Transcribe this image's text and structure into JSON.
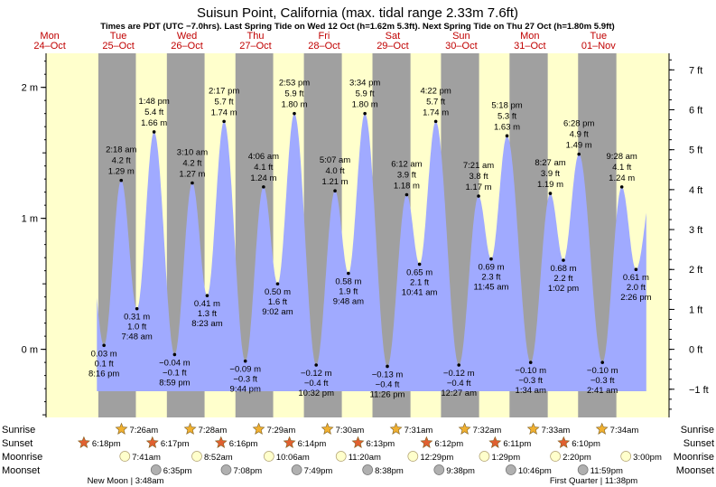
{
  "chart_data": {
    "type": "area",
    "title": "Suisun Point, California (max. tidal range 2.33m 7.6ft)",
    "subtitle": "Times are PDT (UTC −7.0hrs). Last Spring Tide on Wed 12 Oct (h=1.62m 5.3ft). Next Spring Tide on Thu 27 Oct (h=1.80m 5.9ft)",
    "units_left": "m",
    "units_right": "ft",
    "y_range_m": [
      -0.52,
      2.26
    ],
    "m_ticks": [
      {
        "v": 0,
        "label": "0 m"
      },
      {
        "v": 1,
        "label": "1 m"
      },
      {
        "v": 2,
        "label": "2 m"
      }
    ],
    "ft_ticks": [
      {
        "v": -1,
        "label": "−1 ft"
      },
      {
        "v": 0,
        "label": "0 ft"
      },
      {
        "v": 1,
        "label": "1 ft"
      },
      {
        "v": 2,
        "label": "2 ft"
      },
      {
        "v": 3,
        "label": "3 ft"
      },
      {
        "v": 4,
        "label": "4 ft"
      },
      {
        "v": 5,
        "label": "5 ft"
      },
      {
        "v": 6,
        "label": "6 ft"
      },
      {
        "v": 7,
        "label": "7 ft"
      }
    ],
    "x_range_hours": [
      0,
      218
    ],
    "days": [
      {
        "weekday": "Mon",
        "date": "24–Oct"
      },
      {
        "weekday": "Tue",
        "date": "25–Oct"
      },
      {
        "weekday": "Wed",
        "date": "26–Oct"
      },
      {
        "weekday": "Thu",
        "date": "27–Oct"
      },
      {
        "weekday": "Fri",
        "date": "28–Oct"
      },
      {
        "weekday": "Sat",
        "date": "29–Oct"
      },
      {
        "weekday": "Sun",
        "date": "30–Oct"
      },
      {
        "weekday": "Mon",
        "date": "31–Oct"
      },
      {
        "weekday": "Tue",
        "date": "01–Nov"
      }
    ],
    "tides": [
      {
        "type": "low",
        "time": "8:16 pm",
        "m": "0.03 m",
        "ft": "0.1 ft",
        "t": 20.27,
        "v": 0.03
      },
      {
        "type": "high",
        "time": "2:18 am",
        "m": "1.29 m",
        "ft": "4.2 ft",
        "t": 26.3,
        "v": 1.29
      },
      {
        "type": "low",
        "time": "7:48 am",
        "m": "0.31 m",
        "ft": "1.0 ft",
        "t": 31.8,
        "v": 0.31
      },
      {
        "type": "high",
        "time": "1:48 pm",
        "m": "1.66 m",
        "ft": "5.4 ft",
        "t": 37.8,
        "v": 1.66
      },
      {
        "type": "low",
        "time": "8:59 pm",
        "m": "−0.04 m",
        "ft": "−0.1 ft",
        "t": 44.98,
        "v": -0.04
      },
      {
        "type": "high",
        "time": "3:10 am",
        "m": "1.27 m",
        "ft": "4.2 ft",
        "t": 51.17,
        "v": 1.27
      },
      {
        "type": "low",
        "time": "8:23 am",
        "m": "0.41 m",
        "ft": "1.3 ft",
        "t": 56.38,
        "v": 0.41
      },
      {
        "type": "high",
        "time": "2:17 pm",
        "m": "1.74 m",
        "ft": "5.7 ft",
        "t": 62.28,
        "v": 1.74
      },
      {
        "type": "low",
        "time": "9:44 pm",
        "m": "−0.09 m",
        "ft": "−0.3 ft",
        "t": 69.73,
        "v": -0.09
      },
      {
        "type": "high",
        "time": "4:06 am",
        "m": "1.24 m",
        "ft": "4.1 ft",
        "t": 76.1,
        "v": 1.24
      },
      {
        "type": "low",
        "time": "9:02 am",
        "m": "0.50 m",
        "ft": "1.6 ft",
        "t": 81.03,
        "v": 0.5
      },
      {
        "type": "high",
        "time": "2:53 pm",
        "m": "1.80 m",
        "ft": "5.9 ft",
        "t": 86.88,
        "v": 1.8
      },
      {
        "type": "low",
        "time": "10:32 pm",
        "m": "−0.12 m",
        "ft": "−0.4 ft",
        "t": 94.53,
        "v": -0.12
      },
      {
        "type": "high",
        "time": "5:07 am",
        "m": "1.21 m",
        "ft": "4.0 ft",
        "t": 101.12,
        "v": 1.21
      },
      {
        "type": "low",
        "time": "9:48 am",
        "m": "0.58 m",
        "ft": "1.9 ft",
        "t": 105.8,
        "v": 0.58
      },
      {
        "type": "high",
        "time": "3:34 pm",
        "m": "1.80 m",
        "ft": "5.9 ft",
        "t": 111.57,
        "v": 1.8
      },
      {
        "type": "low",
        "time": "11:26 pm",
        "m": "−0.13 m",
        "ft": "−0.4 ft",
        "t": 119.43,
        "v": -0.13
      },
      {
        "type": "high",
        "time": "6:12 am",
        "m": "1.18 m",
        "ft": "3.9 ft",
        "t": 126.2,
        "v": 1.18
      },
      {
        "type": "low",
        "time": "10:41 am",
        "m": "0.65 m",
        "ft": "2.1 ft",
        "t": 130.68,
        "v": 0.65
      },
      {
        "type": "high",
        "time": "4:22 pm",
        "m": "1.74 m",
        "ft": "5.7 ft",
        "t": 136.37,
        "v": 1.74
      },
      {
        "type": "low",
        "time": "12:27 am",
        "m": "−0.12 m",
        "ft": "−0.4 ft",
        "t": 144.45,
        "v": -0.12
      },
      {
        "type": "high",
        "time": "7:21 am",
        "m": "1.17 m",
        "ft": "3.8 ft",
        "t": 151.35,
        "v": 1.17
      },
      {
        "type": "low",
        "time": "11:45 am",
        "m": "0.69 m",
        "ft": "2.3 ft",
        "t": 155.75,
        "v": 0.69
      },
      {
        "type": "high",
        "time": "5:18 pm",
        "m": "1.63 m",
        "ft": "5.3 ft",
        "t": 161.3,
        "v": 1.63
      },
      {
        "type": "low",
        "time": "1:34 am",
        "m": "−0.10 m",
        "ft": "−0.3 ft",
        "t": 169.57,
        "v": -0.1
      },
      {
        "type": "high",
        "time": "8:27 am",
        "m": "1.19 m",
        "ft": "3.9 ft",
        "t": 176.45,
        "v": 1.19
      },
      {
        "type": "low",
        "time": "1:02 pm",
        "m": "0.68 m",
        "ft": "2.2 ft",
        "t": 181.03,
        "v": 0.68
      },
      {
        "type": "high",
        "time": "6:28 pm",
        "m": "1.49 m",
        "ft": "4.9 ft",
        "t": 186.47,
        "v": 1.49
      },
      {
        "type": "low",
        "time": "2:41 am",
        "m": "−0.10 m",
        "ft": "−0.3 ft",
        "t": 194.68,
        "v": -0.1
      },
      {
        "type": "high",
        "time": "9:28 am",
        "m": "1.24 m",
        "ft": "4.1 ft",
        "t": 201.47,
        "v": 1.24
      },
      {
        "type": "low",
        "time": "2:26 pm",
        "m": "0.61 m",
        "ft": "2.0 ft",
        "t": 206.43,
        "v": 0.61
      }
    ],
    "sunrise": [
      {
        "t": 31.43,
        "time": "7:26am"
      },
      {
        "t": 55.47,
        "time": "7:28am"
      },
      {
        "t": 79.48,
        "time": "7:29am"
      },
      {
        "t": 103.5,
        "time": "7:30am"
      },
      {
        "t": 127.52,
        "time": "7:31am"
      },
      {
        "t": 151.53,
        "time": "7:32am"
      },
      {
        "t": 175.55,
        "time": "7:33am"
      },
      {
        "t": 199.57,
        "time": "7:34am"
      }
    ],
    "sunset": [
      {
        "t": 18.3,
        "time": "6:18pm"
      },
      {
        "t": 42.28,
        "time": "6:17pm"
      },
      {
        "t": 66.27,
        "time": "6:16pm"
      },
      {
        "t": 90.23,
        "time": "6:14pm"
      },
      {
        "t": 114.22,
        "time": "6:13pm"
      },
      {
        "t": 138.2,
        "time": "6:12pm"
      },
      {
        "t": 162.18,
        "time": "6:11pm"
      },
      {
        "t": 186.17,
        "time": "6:10pm"
      }
    ],
    "moonrise": [
      {
        "t": 31.68,
        "time": "7:41am"
      },
      {
        "t": 56.87,
        "time": "8:52am"
      },
      {
        "t": 82.1,
        "time": "10:06am"
      },
      {
        "t": 107.33,
        "time": "11:20am"
      },
      {
        "t": 132.48,
        "time": "12:29pm"
      },
      {
        "t": 157.48,
        "time": "1:29pm"
      },
      {
        "t": 182.33,
        "time": "2:20pm"
      },
      {
        "t": 207,
        "time": "3:00pm"
      }
    ],
    "moonset": [
      {
        "t": 42.58,
        "time": "6:35pm"
      },
      {
        "t": 67.13,
        "time": "7:08pm"
      },
      {
        "t": 91.82,
        "time": "7:49pm"
      },
      {
        "t": 116.63,
        "time": "8:38pm"
      },
      {
        "t": 141.63,
        "time": "9:38pm"
      },
      {
        "t": 166.77,
        "time": "10:46pm"
      },
      {
        "t": 191.98,
        "time": "11:59pm"
      }
    ],
    "moon_phases": [
      {
        "t": 27.8,
        "text": "New Moon | 3:48am"
      },
      {
        "t": 191.63,
        "text": "First Quarter | 11:38pm"
      }
    ],
    "night": {
      "sunrise_first": "7:26am",
      "sunset_first": "6:18pm"
    },
    "colors": {
      "day": "#ffffcc",
      "night": "#a0a0a0",
      "water": "#a0aaff",
      "day_label": "#c00000",
      "sun": "#f0b030",
      "sunset_star": "#e06030",
      "moonrise": "#ffffcc",
      "moonset": "#b0b0b0"
    }
  },
  "row_labels": {
    "sunrise": "Sunrise",
    "sunset": "Sunset",
    "moonrise": "Moonrise",
    "moonset": "Moonset"
  }
}
